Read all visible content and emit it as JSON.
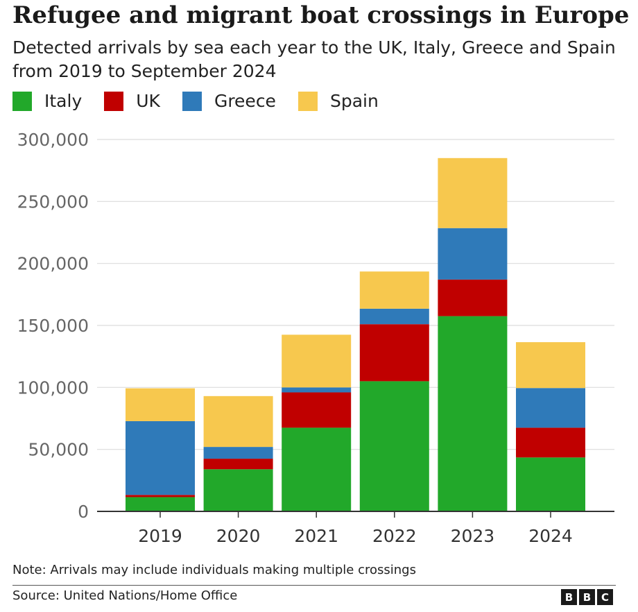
{
  "title": "Refugee and migrant boat crossings in Europe",
  "subtitle": "Detected arrivals by sea each year to the UK, Italy, Greece and Spain from 2019 to September 2024",
  "note": "Note: Arrivals may include individuals making multiple crossings",
  "source": "Source: United Nations/Home Office",
  "logo": [
    "B",
    "B",
    "C"
  ],
  "chart_data": {
    "type": "bar",
    "stacked": true,
    "categories": [
      "2019",
      "2020",
      "2021",
      "2022",
      "2023",
      "2024"
    ],
    "series": [
      {
        "name": "Italy",
        "color": "#22a82a",
        "values": [
          11500,
          34000,
          67500,
          105000,
          157500,
          43500
        ]
      },
      {
        "name": "UK",
        "color": "#c00000",
        "values": [
          1800,
          8500,
          28500,
          46000,
          29500,
          24000
        ]
      },
      {
        "name": "Greece",
        "color": "#2f7ab9",
        "values": [
          59500,
          9500,
          4000,
          12500,
          41500,
          32000
        ]
      },
      {
        "name": "Spain",
        "color": "#f7c84e",
        "values": [
          26500,
          41000,
          42500,
          30000,
          56500,
          37000
        ]
      }
    ],
    "yticks": [
      0,
      50000,
      100000,
      150000,
      200000,
      250000,
      300000
    ],
    "ytick_labels": [
      "0",
      "50,000",
      "100,000",
      "150,000",
      "200,000",
      "250,000",
      "300,000"
    ],
    "ylim": [
      0,
      300000
    ],
    "legend_position": "top-left",
    "grid": true
  }
}
